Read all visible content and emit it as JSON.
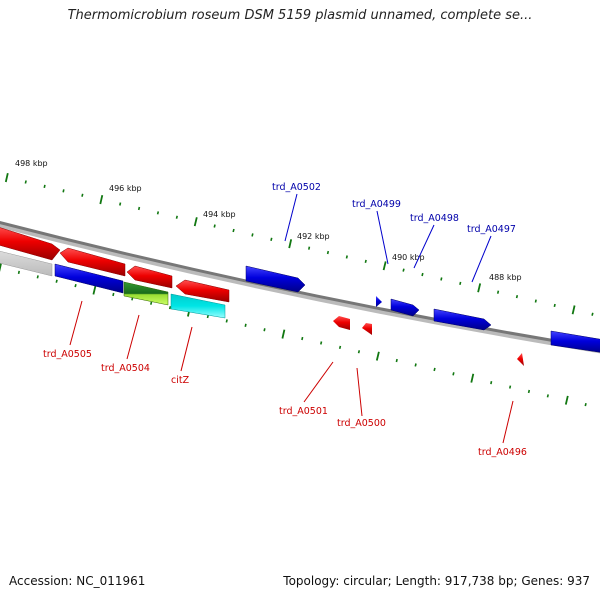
{
  "title": "Thermomicrobium roseum DSM 5159 plasmid unnamed, complete se...",
  "footer": {
    "accession": "Accession: NC_011961",
    "summary": "Topology: circular; Length: 917,738 bp; Genes: 937"
  },
  "scale_labels": [
    "498 kbp",
    "496 kbp",
    "494 kbp",
    "492 kbp",
    "490 kbp",
    "488 kbp"
  ],
  "gene_labels": {
    "forward": [
      "trd_A0502",
      "trd_A0499",
      "trd_A0498",
      "trd_A0497"
    ],
    "reverse": [
      "trd_A0505",
      "trd_A0504",
      "citZ",
      "trd_A0501",
      "trd_A0500",
      "trd_A0496"
    ]
  },
  "colors": {
    "forward": "#0000cc",
    "reverse": "#cc0000",
    "tick": "#117711",
    "backbone": "#888888"
  }
}
